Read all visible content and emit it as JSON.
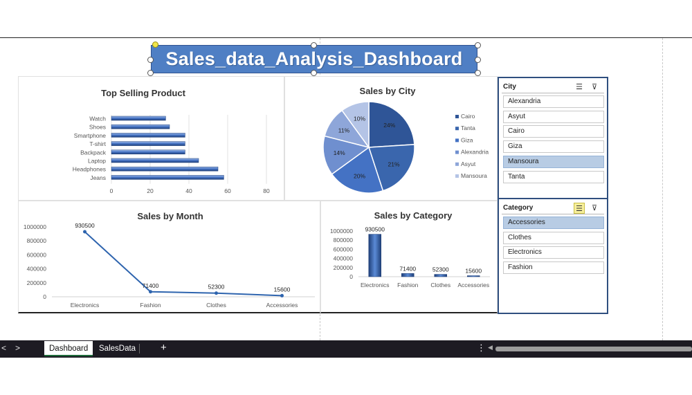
{
  "title": "Sales_data_Analysis_Dashboard",
  "colors": {
    "title_bg": "#4f7fc4",
    "bar_blue": "#4472c4",
    "line_blue": "#2e64ae",
    "pie": [
      "#2f5597",
      "#3a66ad",
      "#4472c4",
      "#6f8fcf",
      "#8ea6d9",
      "#b4c4e6"
    ],
    "slicer_selected": "#b8cce4",
    "taskbar_bg": "#1d1b23"
  },
  "charts": {
    "top_selling": {
      "type": "bar",
      "title": "Top Selling Product",
      "categories": [
        "Watch",
        "Shoes",
        "Smartphone",
        "T-shirt",
        "Backpack",
        "Laptop",
        "Headphones",
        "Jeans"
      ],
      "values": [
        28,
        30,
        38,
        38,
        38,
        45,
        55,
        58
      ],
      "xlim": [
        0,
        80
      ],
      "xticks": [
        "0",
        "20",
        "40",
        "60",
        "80"
      ]
    },
    "sales_city": {
      "type": "pie",
      "title": "Sales by City",
      "slices": [
        {
          "name": "Cairo",
          "value": 24,
          "label": "24%"
        },
        {
          "name": "Tanta",
          "value": 21,
          "label": "21%"
        },
        {
          "name": "Giza",
          "value": 20,
          "label": "20%"
        },
        {
          "name": "Alexandria",
          "value": 14,
          "label": "14%"
        },
        {
          "name": "Asyut",
          "value": 11,
          "label": "11%"
        },
        {
          "name": "Mansoura",
          "value": 10,
          "label": "10%"
        }
      ]
    },
    "sales_month": {
      "type": "line",
      "title": "Sales by Month",
      "categories": [
        "Electronics",
        "Fashion",
        "Clothes",
        "Accessories"
      ],
      "values": [
        930500,
        71400,
        52300,
        15600
      ],
      "data_labels": [
        "930500",
        "71400",
        "52300",
        "15600"
      ],
      "ylim": [
        0,
        1000000
      ],
      "yticks": [
        "0",
        "200000",
        "400000",
        "600000",
        "800000",
        "1000000"
      ]
    },
    "sales_category": {
      "type": "bar",
      "title": "Sales by Category",
      "categories": [
        "Electronics",
        "Fashion",
        "Clothes",
        "Accessories"
      ],
      "values": [
        930500,
        71400,
        52300,
        15600
      ],
      "data_labels": [
        "930500",
        "71400",
        "52300",
        "15600"
      ],
      "ylim": [
        0,
        1000000
      ],
      "yticks": [
        "0",
        "200000",
        "400000",
        "600000",
        "800000",
        "1000000"
      ]
    }
  },
  "chart_data": [
    {
      "type": "bar",
      "title": "Top Selling Product",
      "categories": [
        "Watch",
        "Shoes",
        "Smartphone",
        "T-shirt",
        "Backpack",
        "Laptop",
        "Headphones",
        "Jeans"
      ],
      "values": [
        28,
        30,
        38,
        38,
        38,
        45,
        55,
        58
      ],
      "xlim": [
        0,
        80
      ]
    },
    {
      "type": "pie",
      "title": "Sales by City",
      "categories": [
        "Cairo",
        "Tanta",
        "Giza",
        "Alexandria",
        "Asyut",
        "Mansoura"
      ],
      "values": [
        24,
        21,
        20,
        14,
        11,
        10
      ],
      "legend": "right"
    },
    {
      "type": "line",
      "title": "Sales by Month",
      "categories": [
        "Electronics",
        "Fashion",
        "Clothes",
        "Accessories"
      ],
      "values": [
        930500,
        71400,
        52300,
        15600
      ],
      "ylim": [
        0,
        1000000
      ]
    },
    {
      "type": "bar",
      "title": "Sales by Category",
      "categories": [
        "Electronics",
        "Fashion",
        "Clothes",
        "Accessories"
      ],
      "values": [
        930500,
        71400,
        52300,
        15600
      ],
      "ylim": [
        0,
        1000000
      ]
    }
  ],
  "slicers": {
    "city": {
      "title": "City",
      "items": [
        {
          "label": "Alexandria",
          "selected": false
        },
        {
          "label": "Asyut",
          "selected": false
        },
        {
          "label": "Cairo",
          "selected": false
        },
        {
          "label": "Giza",
          "selected": false
        },
        {
          "label": "Mansoura",
          "selected": true
        },
        {
          "label": "Tanta",
          "selected": false
        }
      ]
    },
    "category": {
      "title": "Category",
      "items": [
        {
          "label": "Accessories",
          "selected": true
        },
        {
          "label": "Clothes",
          "selected": false
        },
        {
          "label": "Electronics",
          "selected": false
        },
        {
          "label": "Fashion",
          "selected": false
        }
      ]
    }
  },
  "sheet_tabs": [
    {
      "label": "Dashboard",
      "active": true
    },
    {
      "label": "SalesData",
      "active": false
    }
  ],
  "icons": {
    "multiselect": "multi-select-icon",
    "clear_filter": "clear-filter-icon",
    "add_sheet": "+",
    "menu": "⋮",
    "nav_prev": "<",
    "nav_next": ">",
    "scroll_left": "◀"
  }
}
